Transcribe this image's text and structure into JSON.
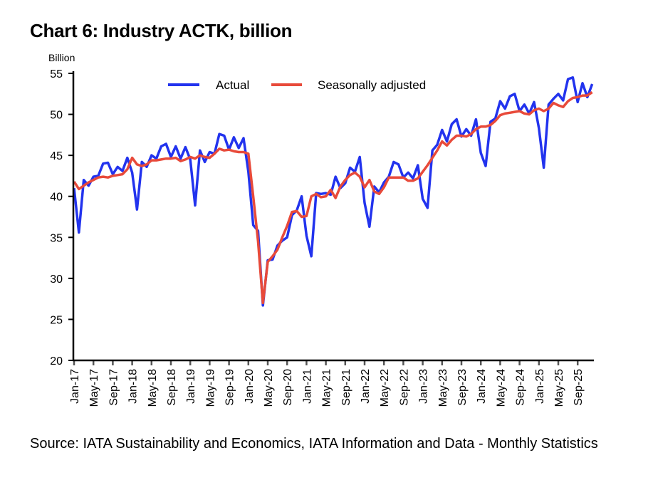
{
  "page": {
    "title": "Chart 6: Industry ACTK, billion",
    "source": "Source: IATA Sustainability and Economics, IATA Information and Data - Monthly Statistics"
  },
  "chart_data": {
    "type": "line",
    "title": "Chart 6: Industry ACTK, billion",
    "xlabel": "",
    "ylabel": "Billion",
    "ylim": [
      20,
      55
    ],
    "yticks": [
      20,
      25,
      30,
      35,
      40,
      45,
      50,
      55
    ],
    "grid": false,
    "legend_position": "top-center",
    "x_start": "Jan-17",
    "x_frequency": "monthly",
    "xtick_labels": [
      "Jan-17",
      "May-17",
      "Sep-17",
      "Jan-18",
      "May-18",
      "Sep-18",
      "Jan-19",
      "May-19",
      "Sep-19",
      "Jan-20",
      "May-20",
      "Sep-20",
      "Jan-21",
      "May-21",
      "Sep-21",
      "Jan-22",
      "May-22",
      "Sep-22",
      "Jan-23",
      "May-23",
      "Sep-23",
      "Jan-24",
      "May-24",
      "Sep-24",
      "Jan-25",
      "May-25",
      "Sep-25"
    ],
    "series": [
      {
        "name": "Actual",
        "color": "#2233ee",
        "values": [
          41.0,
          35.6,
          42.0,
          41.3,
          42.4,
          42.5,
          44.0,
          44.1,
          42.7,
          43.6,
          43.1,
          44.7,
          42.9,
          38.4,
          44.2,
          43.6,
          45.0,
          44.6,
          46.1,
          46.4,
          44.8,
          46.1,
          44.6,
          46.0,
          44.5,
          38.9,
          45.6,
          44.2,
          45.4,
          45.2,
          47.6,
          47.4,
          45.7,
          47.2,
          45.9,
          47.1,
          43.0,
          36.5,
          35.8,
          26.7,
          32.2,
          32.3,
          34.0,
          34.6,
          35.0,
          37.7,
          38.3,
          40.0,
          35.2,
          32.7,
          40.4,
          40.3,
          40.4,
          40.2,
          42.4,
          41.0,
          41.6,
          43.5,
          43.0,
          44.8,
          39.2,
          36.3,
          41.2,
          40.5,
          41.7,
          42.4,
          44.2,
          43.9,
          42.3,
          42.9,
          42.2,
          43.8,
          39.7,
          38.6,
          45.6,
          46.3,
          48.1,
          46.7,
          48.8,
          49.4,
          47.3,
          48.2,
          47.4,
          49.4,
          45.3,
          43.7,
          49.1,
          49.5,
          51.6,
          50.7,
          52.2,
          52.5,
          50.4,
          51.2,
          50.1,
          51.5,
          48.3,
          43.5,
          51.2,
          51.9,
          52.5,
          51.7,
          54.3,
          54.5,
          51.5,
          53.8,
          52.1,
          53.7
        ]
      },
      {
        "name": "Seasonally adjusted",
        "color": "#e84a3a",
        "values": [
          41.8,
          40.9,
          41.3,
          41.7,
          42.0,
          42.3,
          42.4,
          42.3,
          42.5,
          42.6,
          42.7,
          43.3,
          44.7,
          43.9,
          43.7,
          43.9,
          44.4,
          44.4,
          44.5,
          44.6,
          44.6,
          44.7,
          44.3,
          44.5,
          44.8,
          44.6,
          45.0,
          44.8,
          44.7,
          45.2,
          45.8,
          45.6,
          45.7,
          45.5,
          45.4,
          45.4,
          45.2,
          40.0,
          34.5,
          27.0,
          32.0,
          32.7,
          33.5,
          35.0,
          36.4,
          38.1,
          38.2,
          37.5,
          37.6,
          40.0,
          40.3,
          39.9,
          40.0,
          40.8,
          39.8,
          41.2,
          42.0,
          42.6,
          42.9,
          42.4,
          41.1,
          42.0,
          40.6,
          40.3,
          41.1,
          42.3,
          42.3,
          42.3,
          42.3,
          41.9,
          41.9,
          42.2,
          43.0,
          43.8,
          44.7,
          45.6,
          46.7,
          46.2,
          46.9,
          47.4,
          47.4,
          47.3,
          47.6,
          48.2,
          48.5,
          48.5,
          48.7,
          49.2,
          49.9,
          50.1,
          50.2,
          50.3,
          50.4,
          50.1,
          50.0,
          50.5,
          50.7,
          50.4,
          50.7,
          51.4,
          51.1,
          50.9,
          51.6,
          52.0,
          52.1,
          52.3,
          52.3,
          52.7
        ]
      }
    ]
  }
}
